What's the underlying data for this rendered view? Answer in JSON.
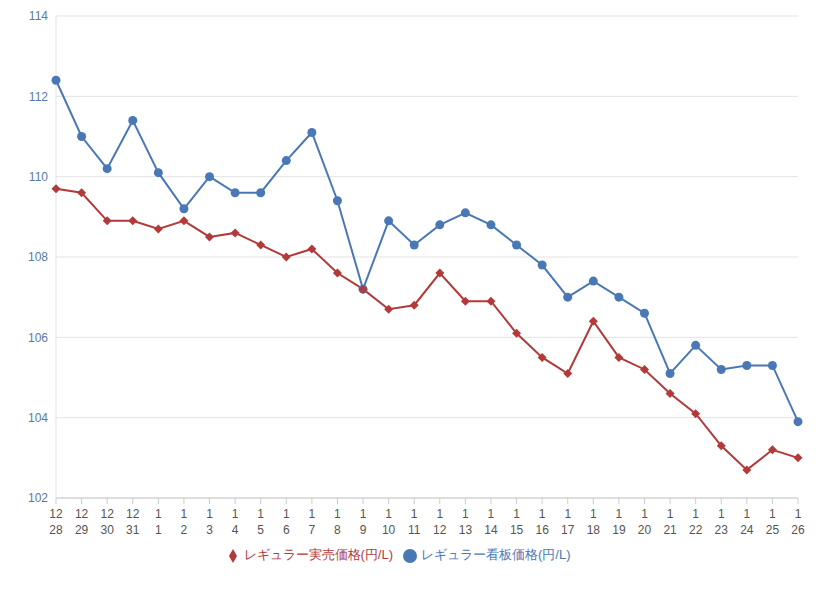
{
  "chart_data": {
    "type": "line",
    "categories": [
      "12\n28",
      "12\n29",
      "12\n30",
      "12\n31",
      "1\n1",
      "1\n2",
      "1\n3",
      "1\n4",
      "1\n5",
      "1\n6",
      "1\n7",
      "1\n8",
      "1\n9",
      "1\n10",
      "1\n11",
      "1\n12",
      "1\n13",
      "1\n14",
      "1\n15",
      "1\n16",
      "1\n17",
      "1\n18",
      "1\n19",
      "1\n20",
      "1\n21",
      "1\n22",
      "1\n23",
      "1\n24",
      "1\n25",
      "1\n26"
    ],
    "series": [
      {
        "name": "レギュラー看板価格(円/L)",
        "color": "#4a78b5",
        "marker": "circle",
        "values": [
          112.4,
          111.0,
          110.2,
          111.4,
          110.1,
          109.2,
          110.0,
          109.6,
          109.6,
          110.4,
          111.1,
          109.4,
          107.2,
          108.9,
          108.3,
          108.8,
          109.1,
          108.8,
          108.3,
          107.8,
          107.0,
          107.4,
          107.0,
          106.6,
          105.1,
          105.8,
          105.2,
          105.3,
          105.3,
          103.9
        ]
      },
      {
        "name": "レギュラー実売価格(円/L)",
        "color": "#b23a3a",
        "marker": "diamond",
        "values": [
          109.7,
          109.6,
          108.9,
          108.9,
          108.7,
          108.9,
          108.5,
          108.6,
          108.3,
          108.0,
          108.2,
          107.6,
          107.2,
          106.7,
          106.8,
          107.6,
          106.9,
          106.9,
          106.1,
          105.5,
          105.1,
          106.4,
          105.5,
          105.2,
          104.6,
          104.1,
          103.3,
          102.7,
          103.2,
          103.0
        ]
      }
    ],
    "ylim": [
      102,
      114
    ],
    "yticks": [
      102,
      104,
      106,
      108,
      110,
      112,
      114
    ],
    "grid": true,
    "legend": "bottom"
  }
}
